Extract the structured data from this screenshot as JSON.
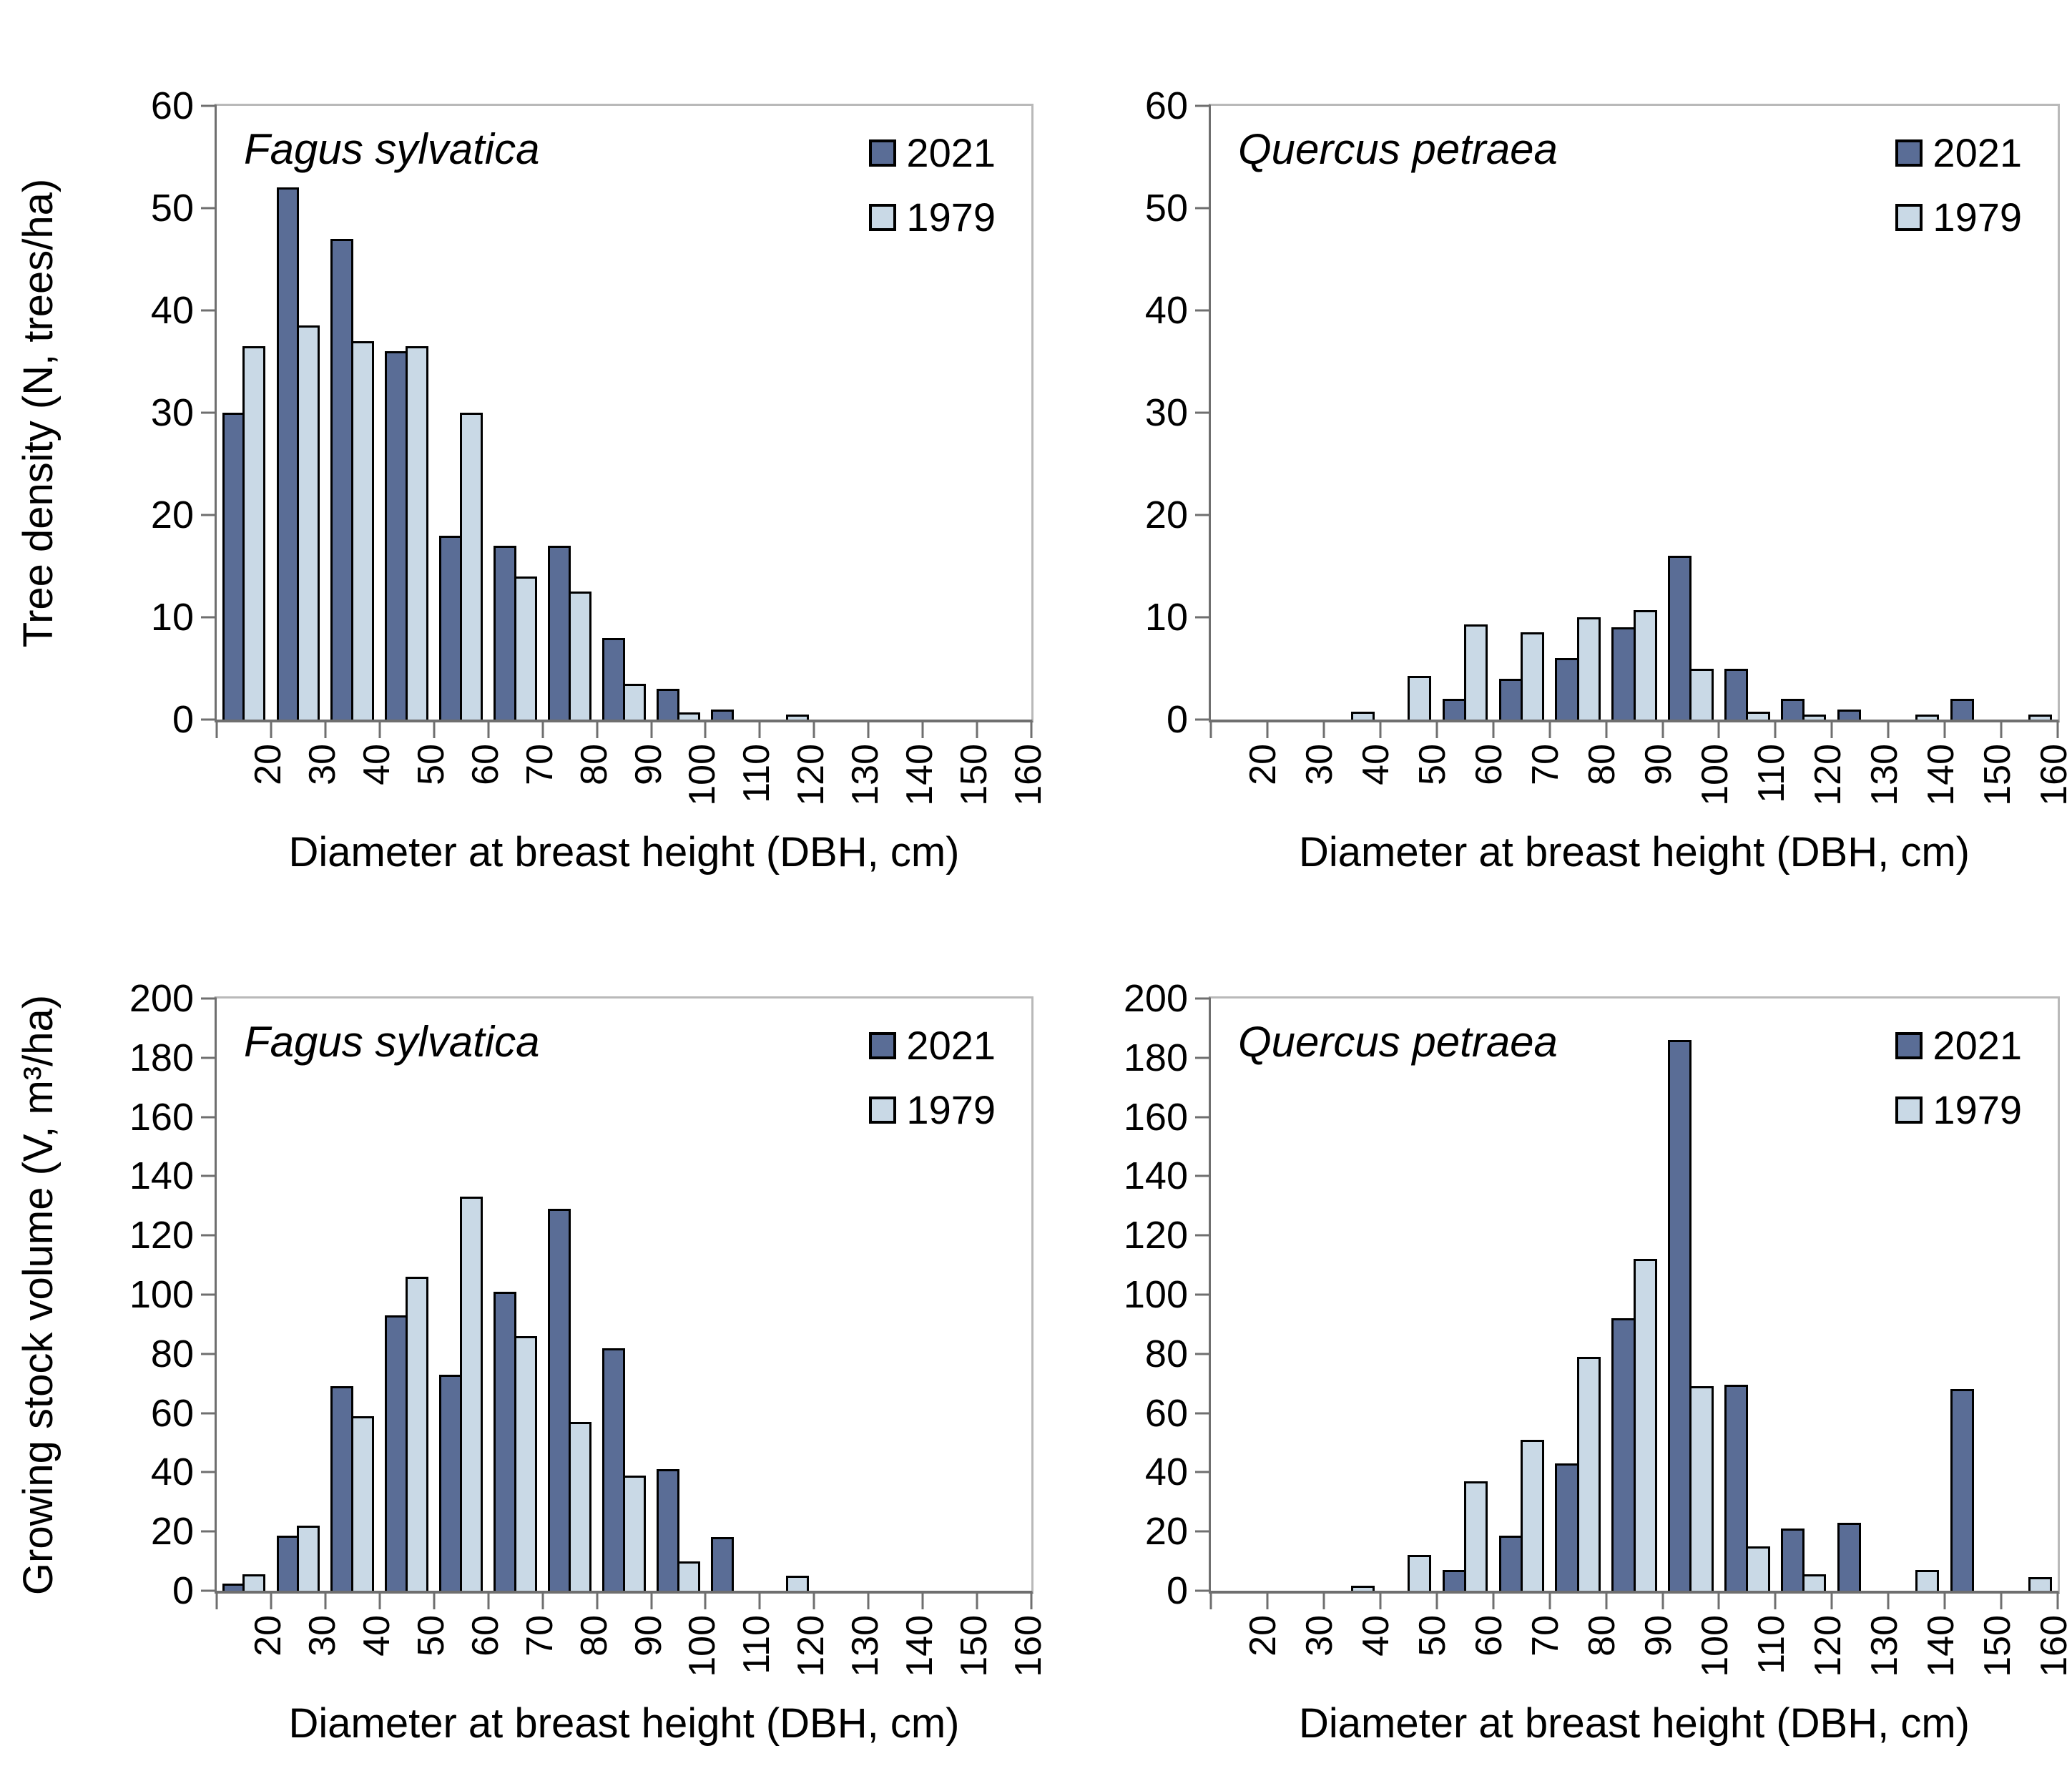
{
  "figure": {
    "colors": {
      "series_2021": "#5a6d96",
      "series_1979": "#c9d9e6",
      "bar_outline": "#000000",
      "axis_line": "#6f6f6f",
      "plot_border": "#b9b9b9"
    },
    "x_axis_title": "Diameter at breast height (DBH, cm)"
  },
  "chart_data": [
    {
      "type": "bar",
      "title": "Fagus sylvatica",
      "xlabel": "Diameter at breast height (DBH, cm)",
      "ylabel": "Tree density (N, trees/ha)",
      "ylim": [
        0,
        60
      ],
      "ytick_step": 10,
      "grid": false,
      "legend_position": "top-right",
      "categories": [
        20,
        30,
        40,
        50,
        60,
        70,
        80,
        90,
        100,
        110,
        120,
        130,
        140,
        150,
        160
      ],
      "series": [
        {
          "name": "2021",
          "values": [
            30,
            52,
            47,
            36,
            18,
            17,
            17,
            8,
            3,
            1,
            0,
            0,
            0,
            0,
            0
          ]
        },
        {
          "name": "1979",
          "values": [
            36.5,
            38.5,
            37,
            36.5,
            30,
            14,
            12.5,
            3.5,
            0.7,
            0,
            0.2,
            0,
            0,
            0,
            0
          ]
        }
      ]
    },
    {
      "type": "bar",
      "title": "Quercus petraea",
      "xlabel": "Diameter at breast height (DBH, cm)",
      "ylabel": "Tree density (N, trees/ha)",
      "ylim": [
        0,
        60
      ],
      "ytick_step": 10,
      "grid": false,
      "legend_position": "top-right",
      "categories": [
        20,
        30,
        40,
        50,
        60,
        70,
        80,
        90,
        100,
        110,
        120,
        130,
        140,
        150,
        160
      ],
      "series": [
        {
          "name": "2021",
          "values": [
            0,
            0,
            0,
            0,
            2,
            4,
            6,
            9,
            16,
            5,
            2,
            1,
            0,
            2,
            0
          ]
        },
        {
          "name": "1979",
          "values": [
            0,
            0,
            0.8,
            4.3,
            9.3,
            8.5,
            10,
            10.7,
            5,
            0.8,
            0.25,
            0,
            0.25,
            0,
            0.25
          ]
        }
      ]
    },
    {
      "type": "bar",
      "title": "Fagus sylvatica",
      "xlabel": "Diameter at breast height (DBH, cm)",
      "ylabel": "Growing stock volume (V, m³/ha)",
      "ylim": [
        0,
        200
      ],
      "ytick_step": 20,
      "grid": false,
      "legend_position": "top-right",
      "categories": [
        20,
        30,
        40,
        50,
        60,
        70,
        80,
        90,
        100,
        110,
        120,
        130,
        140,
        150,
        160
      ],
      "series": [
        {
          "name": "2021",
          "values": [
            2.5,
            18.5,
            69,
            93,
            73,
            101,
            129,
            82,
            41,
            18,
            0,
            0,
            0,
            0,
            0
          ]
        },
        {
          "name": "1979",
          "values": [
            5.5,
            22,
            59,
            106,
            133,
            86,
            57,
            39,
            10,
            0,
            5,
            0,
            0,
            0,
            0
          ]
        }
      ]
    },
    {
      "type": "bar",
      "title": "Quercus petraea",
      "xlabel": "Diameter at breast height (DBH, cm)",
      "ylabel": "Growing stock volume (V, m³/ha)",
      "ylim": [
        0,
        200
      ],
      "ytick_step": 20,
      "grid": false,
      "legend_position": "top-right",
      "categories": [
        20,
        30,
        40,
        50,
        60,
        70,
        80,
        90,
        100,
        110,
        120,
        130,
        140,
        150,
        160
      ],
      "series": [
        {
          "name": "2021",
          "values": [
            0,
            0,
            0,
            0,
            7,
            18.5,
            43,
            92,
            186,
            69.5,
            21,
            23,
            0,
            68,
            0
          ]
        },
        {
          "name": "1979",
          "values": [
            0,
            0,
            1.5,
            12,
            37,
            51,
            79,
            112,
            69,
            15,
            5.5,
            0,
            7,
            0,
            4.5
          ]
        }
      ]
    }
  ]
}
